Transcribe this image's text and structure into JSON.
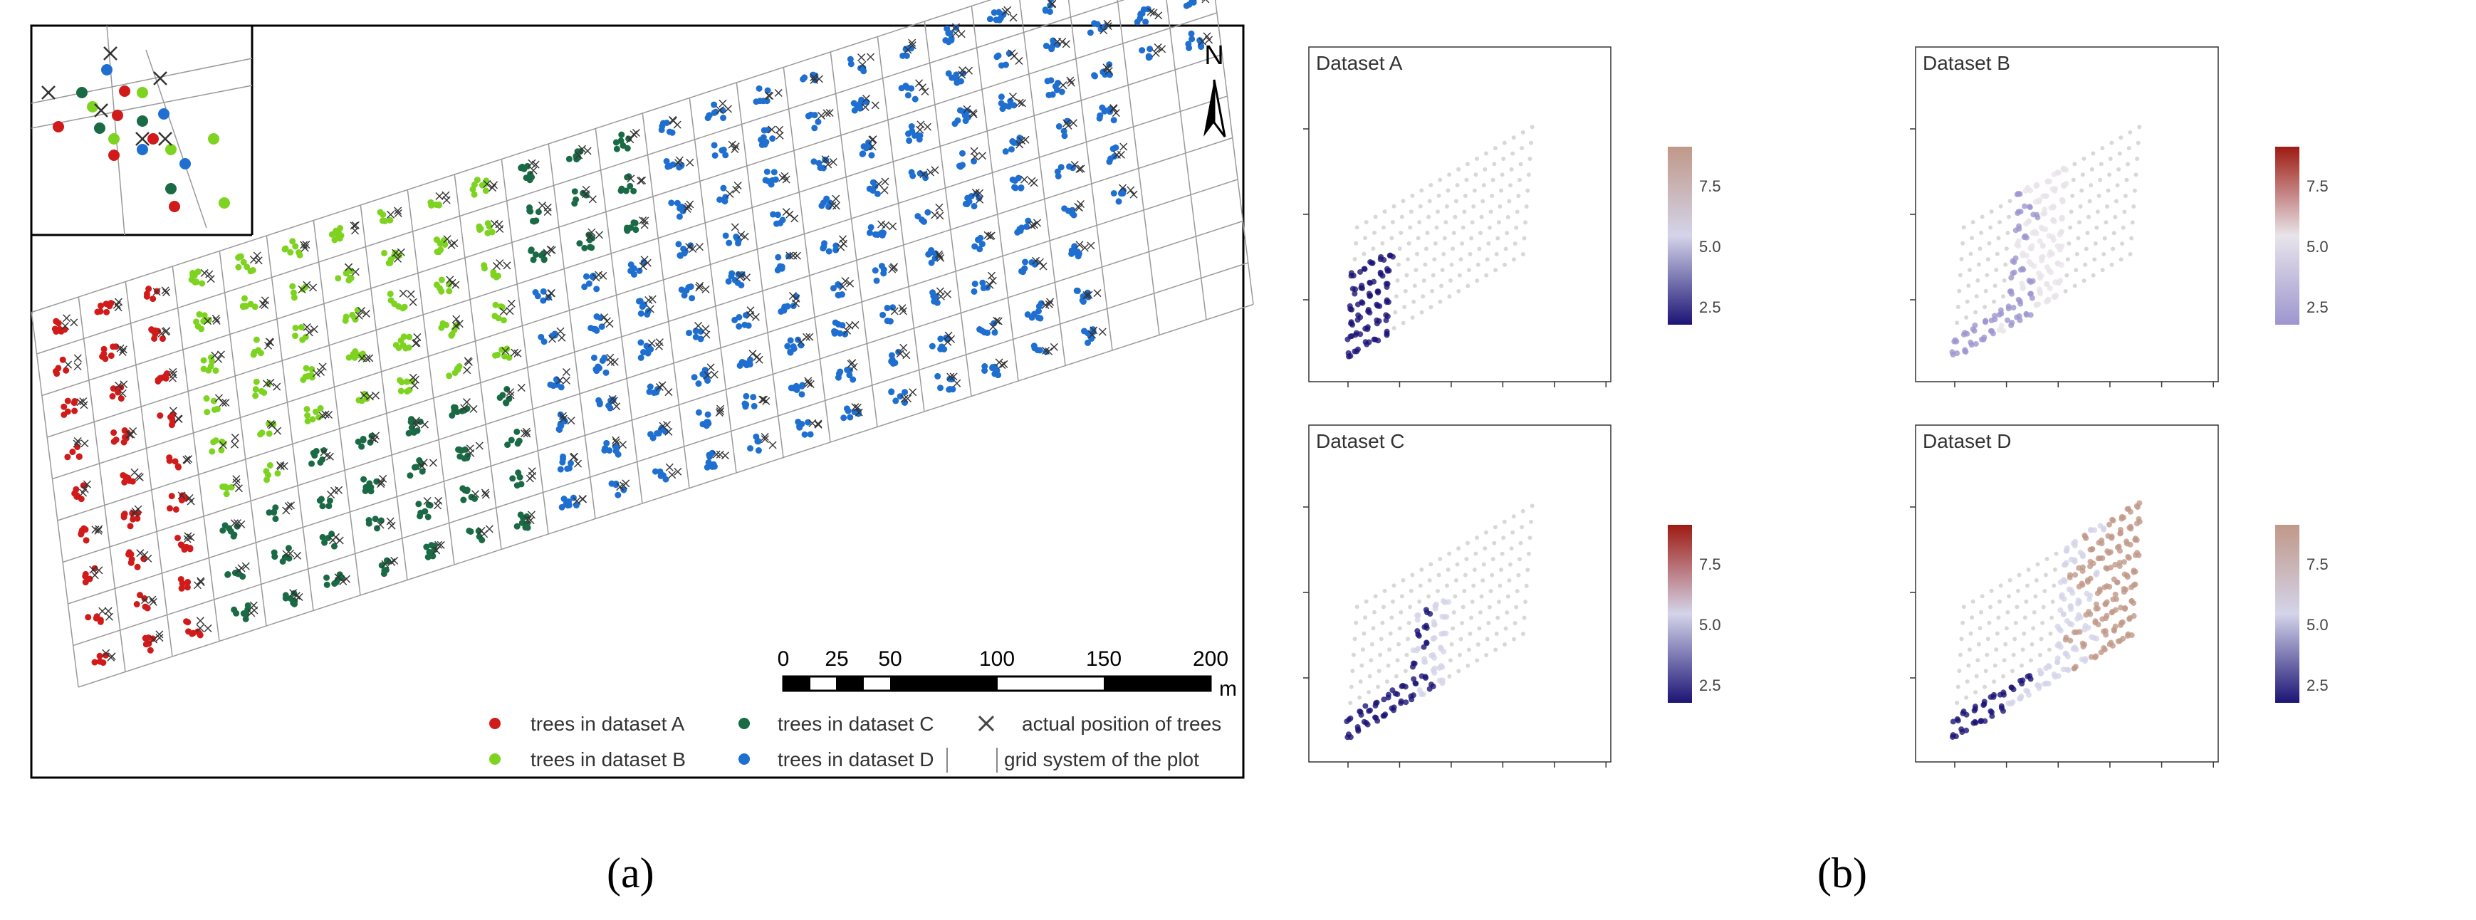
{
  "captions": {
    "a": "(a)",
    "b": "(b)"
  },
  "panel_a": {
    "north": "N",
    "scale_ticks": [
      "0",
      "25",
      "50",
      "100",
      "150",
      "200"
    ],
    "scale_unit": "m",
    "legend": [
      {
        "symbol": "dot",
        "color": "#d11b1b",
        "label": "trees in dataset A"
      },
      {
        "symbol": "dot",
        "color": "#1a6b45",
        "label": "trees in dataset C"
      },
      {
        "symbol": "cross",
        "color": "#444444",
        "label": "actual position of trees"
      },
      {
        "symbol": "dot",
        "color": "#7ed321",
        "label": "trees in dataset B"
      },
      {
        "symbol": "dot",
        "color": "#1f6fd1",
        "label": "trees in dataset D"
      },
      {
        "symbol": "line",
        "color": "#888888",
        "label": "grid system of the plot"
      }
    ],
    "colors": {
      "A": "#d11b1b",
      "B": "#7ed321",
      "C": "#1a6b45",
      "D": "#1f6fd1"
    }
  },
  "panel_b": {
    "colorbar_ticks": [
      "7.5",
      "5.0",
      "2.5"
    ],
    "panels": [
      {
        "title": "Dataset A",
        "colors": [
          "#1c1475",
          "#d4d4ea",
          "#c09888"
        ]
      },
      {
        "title": "Dataset B",
        "colors": [
          "#9d96cf",
          "#e8e4ea",
          "#9e1b12"
        ]
      },
      {
        "title": "Dataset C",
        "colors": [
          "#1c1475",
          "#d4d4ea",
          "#9e1b12"
        ]
      },
      {
        "title": "Dataset D",
        "colors": [
          "#1c1475",
          "#d4d4ea",
          "#c09888"
        ]
      }
    ]
  },
  "chart_data": [
    {
      "type": "scatter",
      "title": "",
      "description_series": [
        "trees in dataset A",
        "trees in dataset B",
        "trees in dataset C",
        "trees in dataset D",
        "actual position of trees"
      ],
      "scale_bar_m": [
        0,
        25,
        50,
        100,
        150,
        200
      ],
      "grid": true
    },
    {
      "type": "scatter",
      "title": "Dataset A",
      "colorbar_ticks": [
        2.5,
        5.0,
        7.5
      ],
      "grid": false
    },
    {
      "type": "scatter",
      "title": "Dataset B",
      "colorbar_ticks": [
        2.5,
        5.0,
        7.5
      ],
      "grid": false
    },
    {
      "type": "scatter",
      "title": "Dataset C",
      "colorbar_ticks": [
        2.5,
        5.0,
        7.5
      ],
      "grid": false
    },
    {
      "type": "scatter",
      "title": "Dataset D",
      "colorbar_ticks": [
        2.5,
        5.0,
        7.5
      ],
      "grid": false
    }
  ]
}
